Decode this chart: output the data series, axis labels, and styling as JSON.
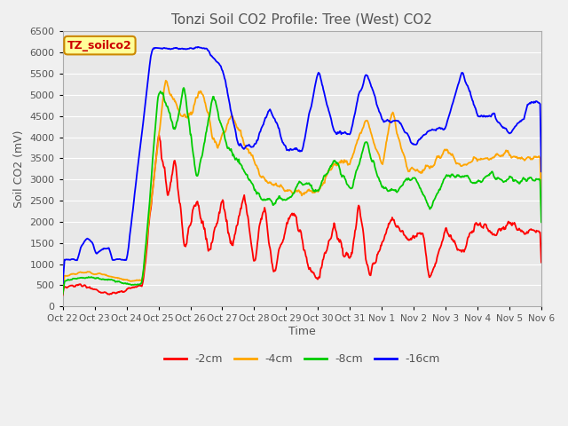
{
  "title": "Tonzi Soil CO2 Profile: Tree (West) CO2",
  "ylabel": "Soil CO2 (mV)",
  "xlabel": "Time",
  "watermark": "TZ_soilco2",
  "ylim": [
    0,
    6500
  ],
  "yticks": [
    0,
    500,
    1000,
    1500,
    2000,
    2500,
    3000,
    3500,
    4000,
    4500,
    5000,
    5500,
    6000,
    6500
  ],
  "xtick_labels": [
    "Oct 22",
    "Oct 23",
    "Oct 24",
    "Oct 25",
    "Oct 26",
    "Oct 27",
    "Oct 28",
    "Oct 29",
    "Oct 30",
    "Oct 31",
    "Nov 1",
    "Nov 2",
    "Nov 3",
    "Nov 4",
    "Nov 5",
    "Nov 6"
  ],
  "series_colors": [
    "#ff0000",
    "#ffa500",
    "#00cc00",
    "#0000ff"
  ],
  "series_labels": [
    "-2cm",
    "-4cm",
    "-8cm",
    "-16cm"
  ],
  "background_color": "#f0f0f0",
  "plot_bg_color": "#e8e8e8",
  "title_color": "#555555",
  "grid_color": "#ffffff",
  "watermark_bg": "#ffff99",
  "watermark_border": "#cc8800",
  "watermark_text_color": "#cc0000",
  "figsize": [
    6.4,
    4.8
  ],
  "dpi": 100
}
